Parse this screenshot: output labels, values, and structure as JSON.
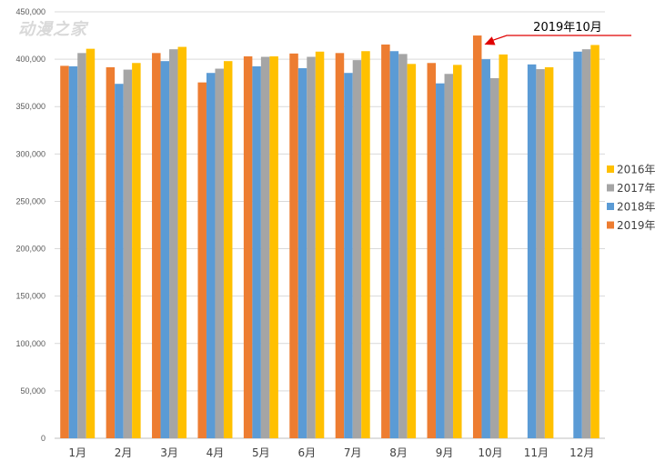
{
  "watermark": "动漫之家",
  "chart_data": {
    "type": "bar",
    "categories": [
      "1月",
      "2月",
      "3月",
      "4月",
      "5月",
      "6月",
      "7月",
      "8月",
      "9月",
      "10月",
      "11月",
      "12月"
    ],
    "series": [
      {
        "name": "2019年",
        "color": "#ED7D31",
        "values": [
          393000,
          391500,
          406500,
          375500,
          403000,
          406000,
          406500,
          415500,
          396000,
          425000,
          null,
          null
        ]
      },
      {
        "name": "2018年",
        "color": "#5B9BD5",
        "values": [
          392500,
          374000,
          398000,
          385500,
          392500,
          390500,
          385500,
          408500,
          374500,
          400000,
          394500,
          408000
        ]
      },
      {
        "name": "2017年",
        "color": "#A5A5A5",
        "values": [
          406500,
          389000,
          410500,
          390000,
          402500,
          402500,
          399000,
          405500,
          384500,
          380000,
          389500,
          410500
        ]
      },
      {
        "name": "2016年",
        "color": "#FFC000",
        "values": [
          411000,
          396000,
          413000,
          398000,
          403000,
          408000,
          408500,
          395000,
          394000,
          405000,
          391500,
          415000
        ]
      }
    ],
    "ylim": [
      0,
      450000
    ],
    "yticks": [
      0,
      50000,
      100000,
      150000,
      200000,
      250000,
      300000,
      350000,
      400000,
      450000
    ],
    "ytick_labels": [
      "0",
      "50,000",
      "100,000",
      "150,000",
      "200,000",
      "250,000",
      "300,000",
      "350,000",
      "400,000",
      "450,000"
    ],
    "grid": true,
    "legend": {
      "placement": "right",
      "order": [
        "2016年",
        "2017年",
        "2018年",
        "2019年"
      ]
    },
    "annotation": {
      "text": "2019年10月",
      "category": "10月",
      "series": "2019年",
      "arrow_color": "#E00000"
    }
  }
}
